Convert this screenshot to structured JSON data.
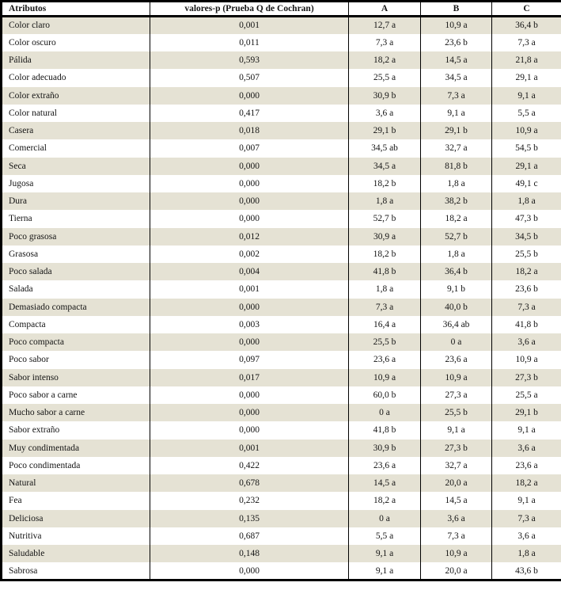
{
  "colors": {
    "row_shaded": "#e5e2d4",
    "row_plain": "#ffffff",
    "border": "#000000",
    "text": "#141414"
  },
  "table": {
    "headers": [
      "Atributos",
      "valores-p (Prueba Q de Cochran)",
      "A",
      "B",
      "C"
    ],
    "rows": [
      [
        "Color claro",
        "0,001",
        "12,7 a",
        "10,9 a",
        "36,4 b"
      ],
      [
        "Color oscuro",
        "0,011",
        "7,3 a",
        "23,6 b",
        "7,3 a"
      ],
      [
        "Pálida",
        "0,593",
        "18,2 a",
        "14,5 a",
        "21,8 a"
      ],
      [
        "Color adecuado",
        "0,507",
        "25,5 a",
        "34,5 a",
        "29,1 a"
      ],
      [
        "Color extraño",
        "0,000",
        "30,9 b",
        "7,3 a",
        "9,1 a"
      ],
      [
        "Color natural",
        "0,417",
        "3,6 a",
        "9,1 a",
        "5,5 a"
      ],
      [
        "Casera",
        "0,018",
        "29,1 b",
        "29,1 b",
        "10,9 a"
      ],
      [
        "Comercial",
        "0,007",
        "34,5 ab",
        "32,7 a",
        "54,5 b"
      ],
      [
        "Seca",
        "0,000",
        "34,5 a",
        "81,8 b",
        "29,1 a"
      ],
      [
        "Jugosa",
        "0,000",
        "18,2 b",
        "1,8 a",
        "49,1 c"
      ],
      [
        "Dura",
        "0,000",
        "1,8 a",
        "38,2 b",
        "1,8 a"
      ],
      [
        "Tierna",
        "0,000",
        "52,7 b",
        "18,2 a",
        "47,3 b"
      ],
      [
        "Poco grasosa",
        "0,012",
        "30,9 a",
        "52,7 b",
        "34,5 b"
      ],
      [
        "Grasosa",
        "0,002",
        "18,2 b",
        "1,8 a",
        "25,5 b"
      ],
      [
        "Poco salada",
        "0,004",
        "41,8 b",
        "36,4 b",
        "18,2 a"
      ],
      [
        "Salada",
        "0,001",
        "1,8 a",
        "9,1 b",
        "23,6 b"
      ],
      [
        "Demasiado compacta",
        "0,000",
        "7,3 a",
        "40,0 b",
        "7,3 a"
      ],
      [
        "Compacta",
        "0,003",
        "16,4 a",
        "36,4 ab",
        "41,8 b"
      ],
      [
        "Poco compacta",
        "0,000",
        "25,5 b",
        "0 a",
        "3,6 a"
      ],
      [
        "Poco sabor",
        "0,097",
        "23,6 a",
        "23,6 a",
        "10,9 a"
      ],
      [
        "Sabor intenso",
        "0,017",
        "10,9 a",
        "10,9 a",
        "27,3 b"
      ],
      [
        "Poco sabor a carne",
        "0,000",
        "60,0 b",
        "27,3 a",
        "25,5 a"
      ],
      [
        "Mucho sabor a carne",
        "0,000",
        "0 a",
        "25,5 b",
        "29,1 b"
      ],
      [
        "Sabor extraño",
        "0,000",
        "41,8 b",
        "9,1 a",
        "9,1 a"
      ],
      [
        "Muy condimentada",
        "0,001",
        "30,9 b",
        "27,3 b",
        "3,6 a"
      ],
      [
        "Poco condimentada",
        "0,422",
        "23,6 a",
        "32,7 a",
        "23,6 a"
      ],
      [
        "Natural",
        "0,678",
        "14,5 a",
        "20,0 a",
        "18,2 a"
      ],
      [
        "Fea",
        "0,232",
        "18,2 a",
        "14,5 a",
        "9,1 a"
      ],
      [
        "Deliciosa",
        "0,135",
        "0 a",
        "3,6 a",
        "7,3 a"
      ],
      [
        "Nutritiva",
        "0,687",
        "5,5 a",
        "7,3 a",
        "3,6 a"
      ],
      [
        "Saludable",
        "0,148",
        "9,1 a",
        "10,9 a",
        "1,8 a"
      ],
      [
        "Sabrosa",
        "0,000",
        "9,1 a",
        "20,0 a",
        "43,6 b"
      ]
    ]
  }
}
